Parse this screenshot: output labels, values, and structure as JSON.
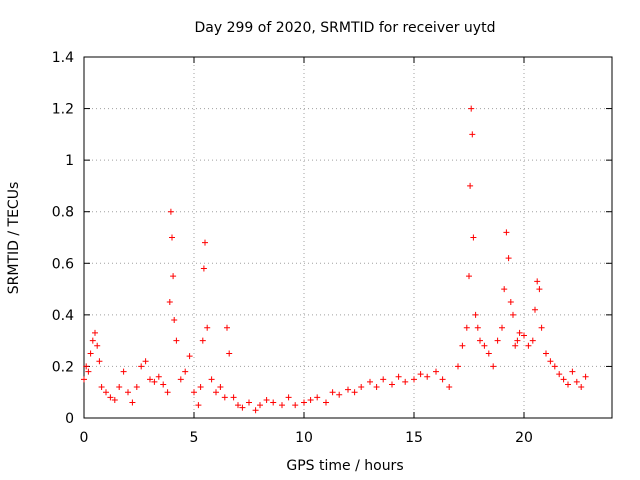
{
  "chart_data": {
    "type": "scatter",
    "title": "Day 299 of 2020, SRMTID for receiver uytd",
    "xlabel": "GPS time / hours",
    "ylabel": "SRMTID / TECUs",
    "xlim": [
      0,
      24
    ],
    "ylim": [
      0,
      1.4
    ],
    "x_ticks": [
      "0",
      "5",
      "10",
      "15",
      "20"
    ],
    "x_tick_values": [
      0,
      5,
      10,
      15,
      20
    ],
    "y_ticks": [
      "0",
      "0.2",
      "0.4",
      "0.6",
      "0.8",
      "1",
      "1.2",
      "1.4"
    ],
    "y_tick_values": [
      0,
      0.2,
      0.4,
      0.6,
      0.8,
      1.0,
      1.2,
      1.4
    ],
    "grid": true,
    "marker": "+",
    "color": "#ff0000",
    "series": [
      {
        "name": "SRMTID",
        "x": [
          0.0,
          0.1,
          0.2,
          0.3,
          0.4,
          0.5,
          0.6,
          0.7,
          0.8,
          1.0,
          1.2,
          1.4,
          1.6,
          1.8,
          2.0,
          2.2,
          2.4,
          2.6,
          2.8,
          3.0,
          3.2,
          3.4,
          3.6,
          3.8,
          3.9,
          3.95,
          4.0,
          4.05,
          4.1,
          4.2,
          4.4,
          4.6,
          4.8,
          5.0,
          5.2,
          5.3,
          5.4,
          5.45,
          5.5,
          5.6,
          5.8,
          6.0,
          6.2,
          6.4,
          6.5,
          6.6,
          6.8,
          7.0,
          7.2,
          7.5,
          7.8,
          8.0,
          8.3,
          8.6,
          9.0,
          9.3,
          9.6,
          10.0,
          10.3,
          10.6,
          11.0,
          11.3,
          11.6,
          12.0,
          12.3,
          12.6,
          13.0,
          13.3,
          13.6,
          14.0,
          14.3,
          14.6,
          15.0,
          15.3,
          15.6,
          16.0,
          16.3,
          16.6,
          17.0,
          17.2,
          17.4,
          17.5,
          17.55,
          17.6,
          17.65,
          17.7,
          17.8,
          17.9,
          18.0,
          18.2,
          18.4,
          18.6,
          18.8,
          19.0,
          19.1,
          19.2,
          19.3,
          19.4,
          19.5,
          19.6,
          19.7,
          19.8,
          20.0,
          20.2,
          20.4,
          20.5,
          20.6,
          20.7,
          20.8,
          21.0,
          21.2,
          21.4,
          21.6,
          21.8,
          22.0,
          22.2,
          22.4,
          22.6,
          22.8
        ],
        "y": [
          0.15,
          0.2,
          0.18,
          0.25,
          0.3,
          0.33,
          0.28,
          0.22,
          0.12,
          0.1,
          0.08,
          0.07,
          0.12,
          0.18,
          0.1,
          0.06,
          0.12,
          0.2,
          0.22,
          0.15,
          0.14,
          0.16,
          0.13,
          0.1,
          0.45,
          0.8,
          0.7,
          0.55,
          0.38,
          0.3,
          0.15,
          0.18,
          0.24,
          0.1,
          0.05,
          0.12,
          0.3,
          0.58,
          0.68,
          0.35,
          0.15,
          0.1,
          0.12,
          0.08,
          0.35,
          0.25,
          0.08,
          0.05,
          0.04,
          0.06,
          0.03,
          0.05,
          0.07,
          0.06,
          0.05,
          0.08,
          0.05,
          0.06,
          0.07,
          0.08,
          0.06,
          0.1,
          0.09,
          0.11,
          0.1,
          0.12,
          0.14,
          0.12,
          0.15,
          0.13,
          0.16,
          0.14,
          0.15,
          0.17,
          0.16,
          0.18,
          0.15,
          0.12,
          0.2,
          0.28,
          0.35,
          0.55,
          0.9,
          1.2,
          1.1,
          0.7,
          0.4,
          0.35,
          0.3,
          0.28,
          0.25,
          0.2,
          0.3,
          0.35,
          0.5,
          0.72,
          0.62,
          0.45,
          0.4,
          0.28,
          0.3,
          0.33,
          0.32,
          0.28,
          0.3,
          0.42,
          0.53,
          0.5,
          0.35,
          0.25,
          0.22,
          0.2,
          0.17,
          0.15,
          0.13,
          0.18,
          0.14,
          0.12,
          0.16
        ]
      }
    ]
  }
}
